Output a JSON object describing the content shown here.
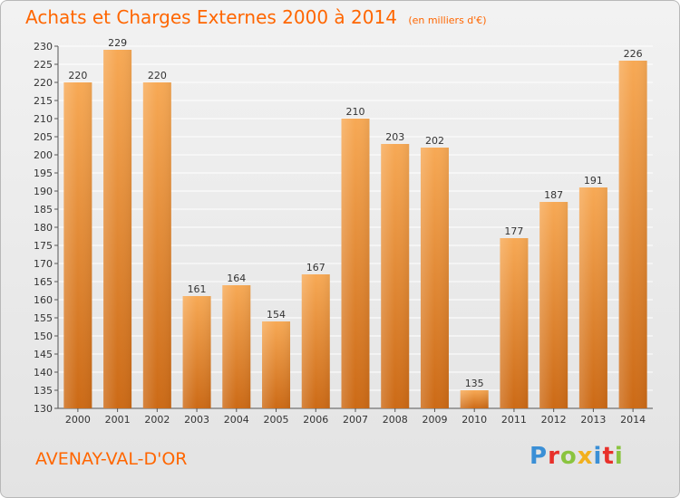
{
  "header": {
    "title": "Achats et Charges Externes 2000 à 2014",
    "unit": "(en milliers d'€)"
  },
  "footer": {
    "location": "AVENAY-VAL-D'OR",
    "logo": "Proxiti"
  },
  "colors": {
    "accent": "#ff6600",
    "bar_light": "#f7a955",
    "bar_dark": "#cc6a16",
    "grid": "#ffffff"
  },
  "chart_data": {
    "type": "bar",
    "categories": [
      "2000",
      "2001",
      "2002",
      "2003",
      "2004",
      "2005",
      "2006",
      "2007",
      "2008",
      "2009",
      "2010",
      "2011",
      "2012",
      "2013",
      "2014"
    ],
    "values": [
      220,
      229,
      220,
      161,
      164,
      154,
      167,
      210,
      203,
      202,
      135,
      177,
      187,
      191,
      226
    ],
    "ylim": [
      130,
      230
    ],
    "ytick_step": 5,
    "grid": true,
    "legend": "none",
    "title": "Achats et Charges Externes 2000 à 2014",
    "ylabel": "",
    "xlabel": ""
  }
}
